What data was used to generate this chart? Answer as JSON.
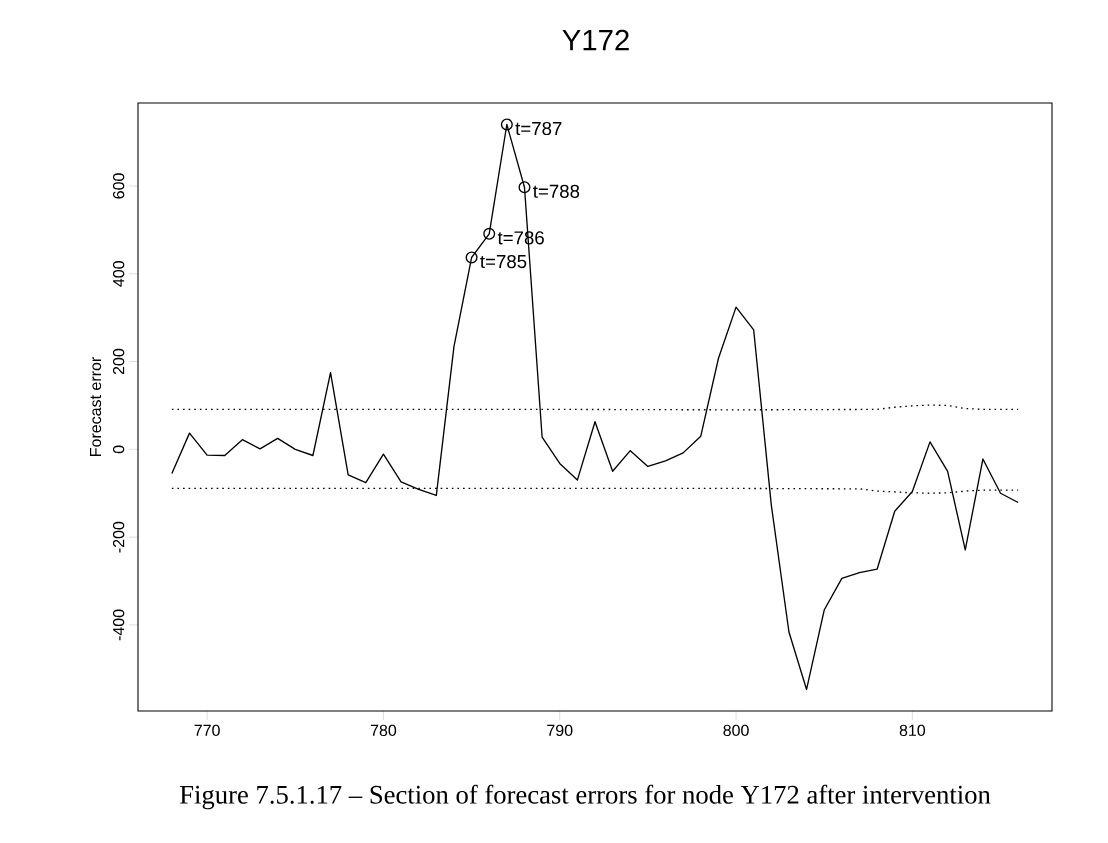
{
  "chart_data": {
    "type": "line",
    "title": "Y172",
    "ylabel": "Forecast error",
    "xlim": [
      766.08,
      817.92
    ],
    "ylim": [
      -596,
      789
    ],
    "xticks": [
      770,
      780,
      790,
      800,
      810
    ],
    "yticks": [
      -400,
      -200,
      0,
      200,
      400,
      600
    ],
    "series": [
      {
        "color": "#000000",
        "line_style": "solid",
        "x": [
          768,
          769,
          770,
          771,
          772,
          773,
          774,
          775,
          776,
          777,
          778,
          779,
          780,
          781,
          782,
          783,
          784,
          785,
          786,
          787,
          788,
          789,
          790,
          791,
          792,
          793,
          794,
          795,
          796,
          797,
          798,
          799,
          800,
          801,
          802,
          803,
          804,
          805,
          806,
          807,
          808,
          809,
          810,
          811,
          812,
          813,
          814,
          815,
          816
        ],
        "values": [
          -55,
          37,
          -13,
          -14,
          22,
          1,
          25,
          0,
          -14,
          175,
          -58,
          -76,
          -11,
          -74,
          -91,
          -105,
          234,
          437,
          491,
          740,
          597,
          28,
          -32,
          -70,
          63,
          -50,
          -3,
          -39,
          -26,
          -8,
          30,
          207,
          324,
          272,
          -127,
          -416,
          -547,
          -366,
          -294,
          -281,
          -273,
          -141,
          -96,
          17,
          -50,
          -229,
          -22,
          -100,
          -121
        ]
      },
      {
        "color": "#000000",
        "line_style": "dotted",
        "x": [
          768,
          780,
          790,
          800,
          808,
          809,
          810,
          811,
          812,
          813,
          814,
          816
        ],
        "values": [
          91,
          91,
          91,
          90,
          91,
          96,
          99,
          101,
          100,
          93,
          91,
          91
        ]
      },
      {
        "color": "#000000",
        "line_style": "dotted",
        "x": [
          768,
          780,
          790,
          800,
          807,
          808,
          809,
          810,
          811,
          812,
          813,
          814,
          816
        ],
        "values": [
          -89,
          -89,
          -89,
          -89,
          -90,
          -95,
          -97,
          -99,
          -100,
          -99,
          -95,
          -93,
          -93
        ]
      },
      {
        "type": "scatter",
        "marker": "circle",
        "color": "#000000",
        "x": [
          785,
          786,
          787,
          788
        ],
        "values": [
          437,
          491,
          740,
          597
        ]
      }
    ],
    "annotations": [
      {
        "text": "t=785",
        "x": 785,
        "y": 437
      },
      {
        "text": "t=786",
        "x": 786,
        "y": 491
      },
      {
        "text": "t=787",
        "x": 787,
        "y": 740
      },
      {
        "text": "t=788",
        "x": 788,
        "y": 597
      },
      "Figure 7.5.1.17 – Section of forecast errors for node Y172 after intervention"
    ]
  }
}
